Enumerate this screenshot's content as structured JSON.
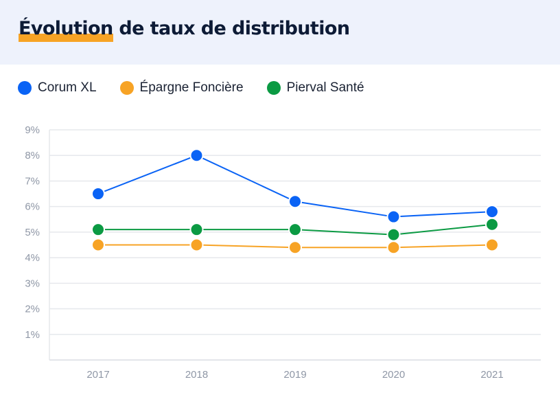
{
  "header": {
    "title_highlight": "Évolution",
    "title_rest": " de taux de distribution"
  },
  "legend": [
    {
      "label": "Corum XL",
      "color": "#0a63f5"
    },
    {
      "label": "Épargne Foncière",
      "color": "#f7a325"
    },
    {
      "label": "Pierval Santé",
      "color": "#0b9a43"
    }
  ],
  "chart_data": {
    "type": "line",
    "title": "Évolution de taux de distribution",
    "xlabel": "",
    "ylabel": "",
    "x": [
      "2017",
      "2018",
      "2019",
      "2020",
      "2021"
    ],
    "ylim": [
      0,
      9
    ],
    "yticks": [
      "1%",
      "2%",
      "3%",
      "4%",
      "5%",
      "6%",
      "7%",
      "8%",
      "9%"
    ],
    "grid": true,
    "legend_position": "top-left",
    "series": [
      {
        "name": "Corum XL",
        "color": "#0a63f5",
        "values": [
          6.5,
          8.0,
          6.2,
          5.6,
          5.8
        ]
      },
      {
        "name": "Épargne Foncière",
        "color": "#f7a325",
        "values": [
          4.5,
          4.5,
          4.4,
          4.4,
          4.5
        ]
      },
      {
        "name": "Pierval Santé",
        "color": "#0b9a43",
        "values": [
          5.1,
          5.1,
          5.1,
          4.9,
          5.3
        ]
      }
    ]
  }
}
